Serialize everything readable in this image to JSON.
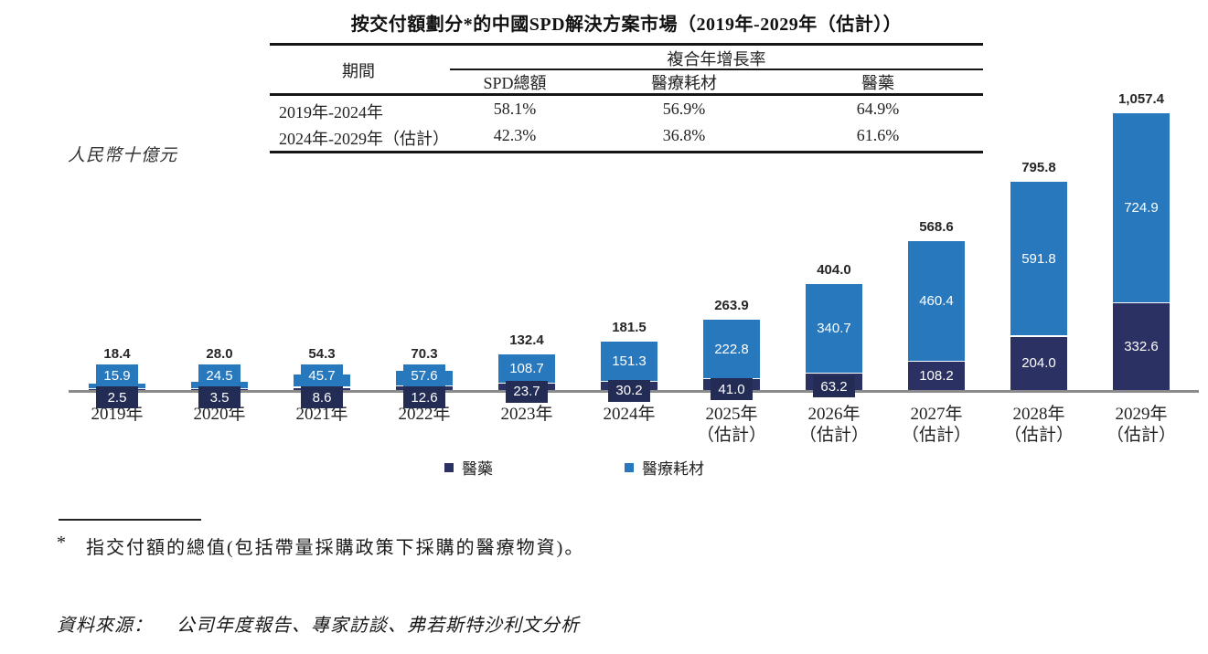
{
  "title": "按交付額劃分*的中國SPD解決方案市場（2019年-2029年（估計））",
  "unit_label": "人民幣十億元",
  "cagr_table": {
    "period_header": "期間",
    "group_header": "複合年增長率",
    "columns": [
      "SPD總額",
      "醫療耗材",
      "醫藥"
    ],
    "rows": [
      {
        "period": "2019年-2024年",
        "values": [
          "58.1%",
          "56.9%",
          "64.9%"
        ]
      },
      {
        "period": "2024年-2029年（估計）",
        "values": [
          "42.3%",
          "36.8%",
          "61.6%"
        ]
      }
    ]
  },
  "legend": {
    "pharma": {
      "label": "醫藥",
      "color": "#2B3263"
    },
    "consumables": {
      "label": "醫療耗材",
      "color": "#2878BE"
    }
  },
  "footnote": {
    "marker": "*",
    "text": "指交付額的總值(包括帶量採購政策下採購的醫療物資)。"
  },
  "source": {
    "label": "資料來源：",
    "text": "公司年度報告、專家訪談、弗若斯特沙利文分析"
  },
  "chart_data": {
    "type": "bar",
    "stacked": true,
    "title": "按交付額劃分*的中國SPD解決方案市場（2019年-2029年（估計））",
    "ylabel": "人民幣十億元",
    "xlabel": "",
    "grid": false,
    "legend_position": "bottom",
    "ylim": [
      0,
      1100
    ],
    "axis_color": "#8a8a8a",
    "chip_color": "#232C55",
    "categories": [
      "2019年",
      "2020年",
      "2021年",
      "2022年",
      "2023年",
      "2024年",
      "2025年（估計）",
      "2026年（估計）",
      "2027年（估計）",
      "2028年（估計）",
      "2029年（估計）"
    ],
    "categories_display": [
      [
        "2019年"
      ],
      [
        "2020年"
      ],
      [
        "2021年"
      ],
      [
        "2022年"
      ],
      [
        "2023年"
      ],
      [
        "2024年"
      ],
      [
        "2025年",
        "（估計）"
      ],
      [
        "2026年",
        "（估計）"
      ],
      [
        "2027年",
        "（估計）"
      ],
      [
        "2028年",
        "（估計）"
      ],
      [
        "2029年",
        "（估計）"
      ]
    ],
    "series": [
      {
        "name": "醫藥",
        "color": "#2B3263",
        "values": [
          2.5,
          3.5,
          8.6,
          12.6,
          23.7,
          30.2,
          41.0,
          63.2,
          108.2,
          204.0,
          332.6
        ],
        "labels": [
          "2.5",
          "3.5",
          "8.6",
          "12.6",
          "23.7",
          "30.2",
          "41.0",
          "63.2",
          "108.2",
          "204.0",
          "332.6"
        ]
      },
      {
        "name": "醫療耗材",
        "color": "#2878BE",
        "values": [
          15.9,
          24.5,
          45.7,
          57.6,
          108.7,
          151.3,
          222.8,
          340.7,
          460.4,
          591.8,
          724.9
        ],
        "labels": [
          "15.9",
          "24.5",
          "45.7",
          "57.6",
          "108.7",
          "151.3",
          "222.8",
          "340.7",
          "460.4",
          "591.8",
          "724.9"
        ]
      }
    ],
    "totals": [
      18.4,
      28.0,
      54.3,
      70.3,
      132.4,
      181.5,
      263.9,
      404.0,
      568.6,
      795.8,
      1057.4
    ],
    "total_labels": [
      "18.4",
      "28.0",
      "54.3",
      "70.3",
      "132.4",
      "181.5",
      "263.9",
      "404.0",
      "568.6",
      "795.8",
      "1,057.4"
    ],
    "cagr": {
      "2019-2024": {
        "spd_total": "58.1%",
        "consumables": "56.9%",
        "pharma": "64.9%"
      },
      "2024-2029_est": {
        "spd_total": "42.3%",
        "consumables": "36.8%",
        "pharma": "61.6%"
      }
    }
  }
}
